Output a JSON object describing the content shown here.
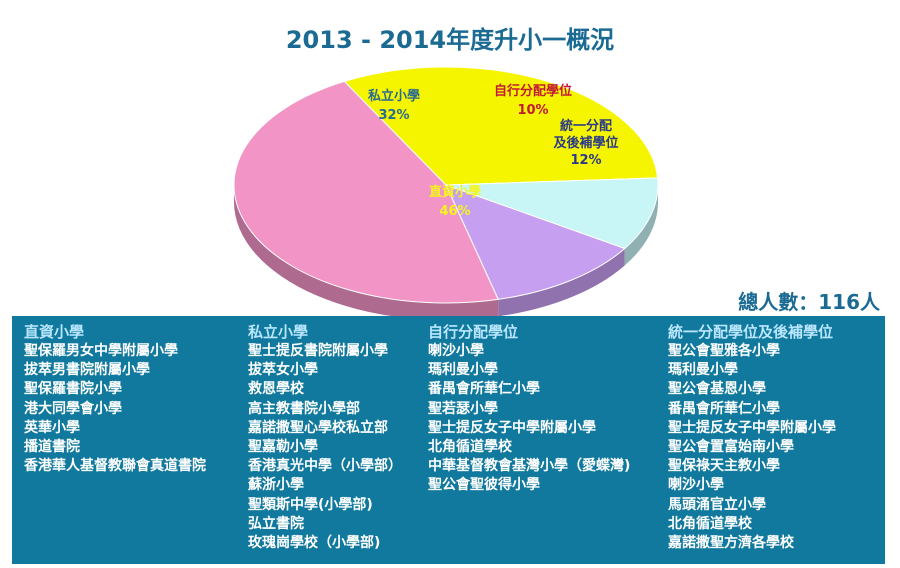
{
  "chart_data": {
    "type": "pie",
    "title": "2013 - 2014年度升小一概況",
    "slices": [
      {
        "label": "私立小學",
        "pct_label": "32%",
        "value": 32,
        "color": "#f5f500"
      },
      {
        "label": "自行分配學位",
        "pct_label": "10%",
        "value": 10,
        "color": "#c8f6f6"
      },
      {
        "label": "統一分配及後補學位",
        "pct_label": "12%",
        "value": 12,
        "color": "#c79ff1"
      },
      {
        "label": "直資小學",
        "pct_label": "46%",
        "value": 46,
        "color": "#f295c6"
      }
    ]
  },
  "total": "總人數：116人",
  "columns": [
    {
      "heading": "直資小學",
      "items": [
        "聖保羅男女中學附屬小學",
        "拔萃男書院附屬小學",
        "聖保羅書院小學",
        "港大同學會小學",
        "英華小學",
        "播道書院",
        "香港華人基督教聯會真道書院"
      ]
    },
    {
      "heading": "私立小學",
      "items": [
        "聖士提反書院附屬小學",
        "拔萃女小學",
        "救恩學校",
        "高主教書院小學部",
        "嘉諾撒聖心學校私立部",
        "聖嘉勒小學",
        "香港真光中學（小學部）",
        "蘇浙小學",
        "聖類斯中學(小學部)",
        "弘立書院",
        "玫瑰崗學校（小學部)"
      ]
    },
    {
      "heading": "自行分配學位",
      "items": [
        "喇沙小學",
        "瑪利曼小學",
        "番禺會所華仁小學",
        "聖若瑟小學",
        "聖士提反女子中學附屬小學",
        "北角循道學校",
        "中華基督教會基灣小學（愛蝶灣)",
        "聖公會聖彼得小學"
      ]
    },
    {
      "heading": "統一分配學位及後補學位",
      "items": [
        "聖公會聖雅各小學",
        "瑪利曼小學",
        "聖公會基恩小學",
        "番禺會所華仁小學",
        "聖士提反女子中學附屬小學",
        "聖公會置富始南小學",
        "聖保祿天主教小學",
        "喇沙小學",
        "馬頭涌官立小學",
        "北角循道學校",
        "嘉諾撒聖方濟各學校"
      ]
    }
  ]
}
